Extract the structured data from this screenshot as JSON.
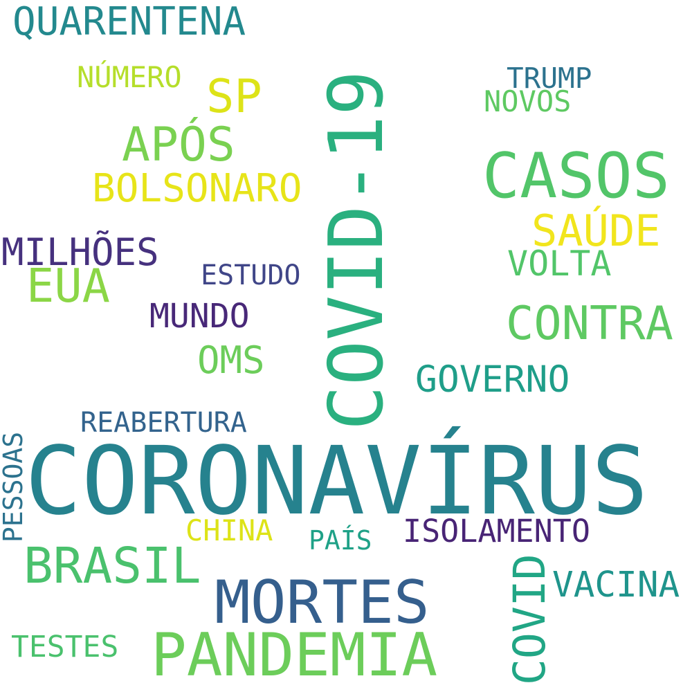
{
  "words": [
    {
      "text": "CORONAVÍRUS",
      "color": "#26828e"
    },
    {
      "text": "COVID-19",
      "color": "#2ab07f"
    },
    {
      "text": "CASOS",
      "color": "#52c569"
    },
    {
      "text": "PANDEMIA",
      "color": "#6ccd5a"
    },
    {
      "text": "MORTES",
      "color": "#355f8d"
    },
    {
      "text": "BRASIL",
      "color": "#4ac16d"
    },
    {
      "text": "CONTRA",
      "color": "#5ec962"
    },
    {
      "text": "COVID",
      "color": "#21a685"
    },
    {
      "text": "QUARENTENA",
      "color": "#23898e"
    },
    {
      "text": "APÓS",
      "color": "#7ad151"
    },
    {
      "text": "BOLSONARO",
      "color": "#e7e419"
    },
    {
      "text": "EUA",
      "color": "#8bd646"
    },
    {
      "text": "SP",
      "color": "#dde318"
    },
    {
      "text": "SAÚDE",
      "color": "#f1e51d"
    },
    {
      "text": "MILHÕES",
      "color": "#46317e"
    },
    {
      "text": "GOVERNO",
      "color": "#1f9e89"
    },
    {
      "text": "VACINA",
      "color": "#1f948c"
    },
    {
      "text": "OMS",
      "color": "#6ccd5a"
    },
    {
      "text": "VOLTA",
      "color": "#52c569"
    },
    {
      "text": "MUNDO",
      "color": "#482878"
    },
    {
      "text": "ISOLAMENTO",
      "color": "#482475"
    },
    {
      "text": "REABERTURA",
      "color": "#33638d"
    },
    {
      "text": "NÚMERO",
      "color": "#b5de2b"
    },
    {
      "text": "TRUMP",
      "color": "#2c728e"
    },
    {
      "text": "NOVOS",
      "color": "#5ec962"
    },
    {
      "text": "ESTUDO",
      "color": "#404688"
    },
    {
      "text": "PESSOAS",
      "color": "#2c728e"
    },
    {
      "text": "CHINA",
      "color": "#dde318"
    },
    {
      "text": "PAÍS",
      "color": "#1fa187"
    },
    {
      "text": "TESTES",
      "color": "#4ac16d"
    }
  ]
}
